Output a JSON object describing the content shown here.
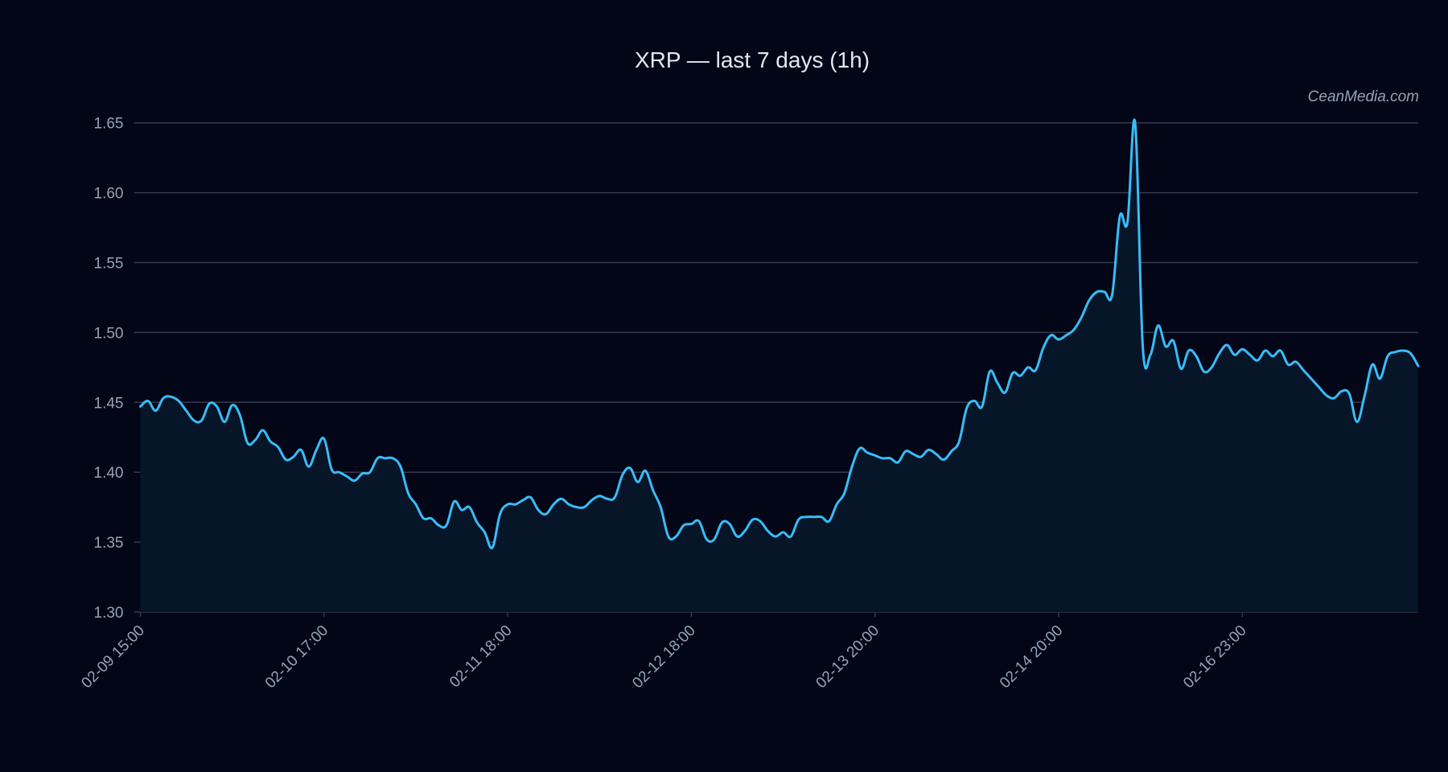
{
  "chart_data": {
    "type": "area",
    "title": "XRP — last 7 days (1h)",
    "watermark": "CeanMedia.com",
    "xlabel": "",
    "ylabel": "",
    "ylim": [
      1.3,
      1.65
    ],
    "y_ticks": [
      1.3,
      1.35,
      1.4,
      1.45,
      1.5,
      1.55,
      1.6,
      1.65
    ],
    "x_ticks": [
      {
        "label": "02-09 15:00",
        "index": 0
      },
      {
        "label": "02-10 17:00",
        "index": 24
      },
      {
        "label": "02-11 18:00",
        "index": 48
      },
      {
        "label": "02-12 18:00",
        "index": 72
      },
      {
        "label": "02-13 20:00",
        "index": 96
      },
      {
        "label": "02-14 20:00",
        "index": 120
      },
      {
        "label": "02-16 23:00",
        "index": 144
      }
    ],
    "grid": true,
    "colors": {
      "background": "#020617",
      "line": "#38bdf8",
      "fill": "#061528",
      "grid": "#343b4d",
      "text": "#94a3b8",
      "title": "#e2e8f0"
    },
    "series": [
      {
        "values": [
          1.447,
          1.451,
          1.444,
          1.453,
          1.454,
          1.451,
          1.444,
          1.437,
          1.437,
          1.449,
          1.447,
          1.436,
          1.448,
          1.441,
          1.421,
          1.423,
          1.43,
          1.422,
          1.418,
          1.409,
          1.411,
          1.416,
          1.404,
          1.416,
          1.424,
          1.402,
          1.4,
          1.397,
          1.394,
          1.399,
          1.4,
          1.41,
          1.41,
          1.41,
          1.404,
          1.385,
          1.377,
          1.367,
          1.367,
          1.362,
          1.362,
          1.379,
          1.373,
          1.375,
          1.364,
          1.357,
          1.346,
          1.37,
          1.377,
          1.377,
          1.38,
          1.382,
          1.373,
          1.37,
          1.377,
          1.381,
          1.377,
          1.375,
          1.375,
          1.38,
          1.383,
          1.381,
          1.382,
          1.398,
          1.403,
          1.393,
          1.401,
          1.387,
          1.375,
          1.354,
          1.354,
          1.362,
          1.363,
          1.365,
          1.352,
          1.352,
          1.364,
          1.363,
          1.354,
          1.358,
          1.366,
          1.365,
          1.358,
          1.354,
          1.357,
          1.354,
          1.366,
          1.368,
          1.368,
          1.368,
          1.365,
          1.377,
          1.385,
          1.404,
          1.417,
          1.414,
          1.412,
          1.41,
          1.41,
          1.407,
          1.415,
          1.413,
          1.411,
          1.416,
          1.413,
          1.409,
          1.415,
          1.422,
          1.446,
          1.451,
          1.447,
          1.472,
          1.464,
          1.457,
          1.471,
          1.469,
          1.475,
          1.473,
          1.489,
          1.498,
          1.495,
          1.498,
          1.502,
          1.511,
          1.523,
          1.529,
          1.529,
          1.527,
          1.583,
          1.579,
          1.65,
          1.49,
          1.484,
          1.505,
          1.49,
          1.494,
          1.474,
          1.487,
          1.483,
          1.472,
          1.475,
          1.485,
          1.491,
          1.484,
          1.488,
          1.484,
          1.48,
          1.487,
          1.483,
          1.487,
          1.477,
          1.479,
          1.473,
          1.467,
          1.461,
          1.455,
          1.453,
          1.458,
          1.456,
          1.436,
          1.455,
          1.477,
          1.467,
          1.483,
          1.486,
          1.487,
          1.485,
          1.476
        ]
      }
    ]
  }
}
